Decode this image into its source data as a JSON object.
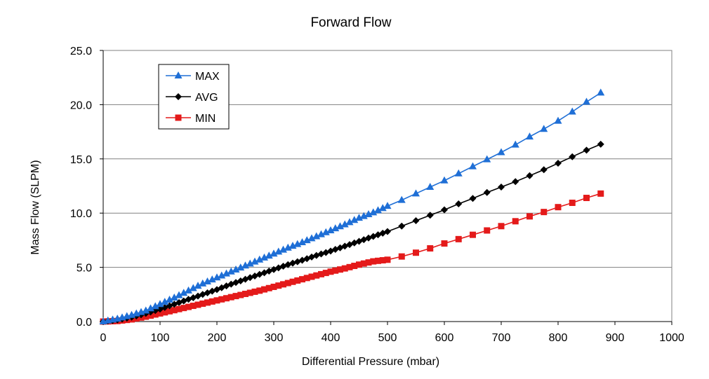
{
  "chart_data": {
    "type": "line",
    "title": "Forward Flow",
    "xlabel": "Differential Pressure (mbar)",
    "ylabel": "Mass Flow (SLPM)",
    "xlim": [
      0,
      1000
    ],
    "ylim": [
      0,
      25
    ],
    "xticks": [
      "0",
      "100",
      "200",
      "300",
      "400",
      "500",
      "600",
      "700",
      "800",
      "900",
      "1000"
    ],
    "yticks": [
      "0.0",
      "5.0",
      "10.0",
      "15.0",
      "20.0",
      "25.0"
    ],
    "grid": "horizontal",
    "legend_position": "top-left",
    "series": [
      {
        "name": "MAX",
        "color": "#1f6fd6",
        "marker": "triangle",
        "x": [
          0,
          25,
          50,
          75,
          100,
          125,
          150,
          175,
          200,
          225,
          250,
          275,
          300,
          325,
          350,
          375,
          400,
          425,
          450,
          475,
          500,
          525,
          550,
          575,
          600,
          625,
          650,
          675,
          700,
          725,
          750,
          775,
          800,
          825,
          850,
          875
        ],
        "y": [
          0.0,
          0.25,
          0.6,
          1.0,
          1.6,
          2.2,
          2.85,
          3.5,
          4.05,
          4.6,
          5.15,
          5.7,
          6.25,
          6.8,
          7.3,
          7.85,
          8.4,
          8.95,
          9.55,
          10.05,
          10.65,
          11.2,
          11.8,
          12.4,
          13.0,
          13.65,
          14.3,
          14.95,
          15.6,
          16.3,
          17.05,
          17.75,
          18.5,
          19.35,
          20.25,
          21.1
        ]
      },
      {
        "name": "AVG",
        "color": "#000000",
        "marker": "diamond",
        "x": [
          0,
          25,
          50,
          75,
          100,
          125,
          150,
          175,
          200,
          225,
          250,
          275,
          300,
          325,
          350,
          375,
          400,
          425,
          450,
          475,
          500,
          525,
          550,
          575,
          600,
          625,
          650,
          675,
          700,
          725,
          750,
          775,
          800,
          825,
          850,
          875
        ],
        "y": [
          0.0,
          0.15,
          0.4,
          0.75,
          1.15,
          1.6,
          2.05,
          2.5,
          2.95,
          3.45,
          3.9,
          4.35,
          4.8,
          5.25,
          5.65,
          6.1,
          6.5,
          6.95,
          7.4,
          7.85,
          8.3,
          8.8,
          9.3,
          9.8,
          10.3,
          10.85,
          11.35,
          11.9,
          12.4,
          12.9,
          13.45,
          14.0,
          14.6,
          15.2,
          15.8,
          16.35
        ]
      },
      {
        "name": "MIN",
        "color": "#e41a1a",
        "marker": "square",
        "x": [
          0,
          25,
          50,
          75,
          100,
          125,
          150,
          175,
          200,
          225,
          250,
          275,
          300,
          325,
          350,
          375,
          400,
          425,
          450,
          475,
          500,
          525,
          550,
          575,
          600,
          625,
          650,
          675,
          700,
          725,
          750,
          775,
          800,
          825,
          850,
          875
        ],
        "y": [
          0.0,
          0.05,
          0.2,
          0.45,
          0.75,
          1.05,
          1.35,
          1.65,
          1.95,
          2.25,
          2.55,
          2.85,
          3.2,
          3.55,
          3.9,
          4.25,
          4.6,
          4.9,
          5.25,
          5.55,
          5.7,
          6.0,
          6.35,
          6.75,
          7.2,
          7.6,
          8.0,
          8.4,
          8.8,
          9.25,
          9.7,
          10.1,
          10.55,
          10.95,
          11.4,
          11.8
        ]
      }
    ]
  }
}
